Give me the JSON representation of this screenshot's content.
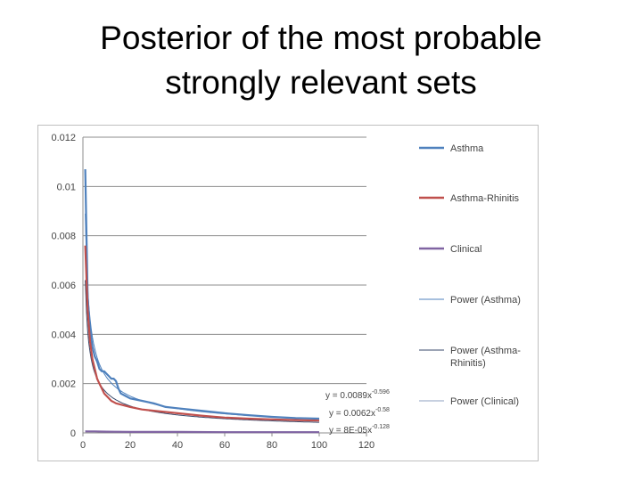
{
  "slide": {
    "title_line1": "Posterior of the most probable",
    "title_line2": "strongly relevant sets"
  },
  "chart_data": {
    "type": "line",
    "xlim": [
      0,
      120
    ],
    "ylim": [
      0,
      0.012
    ],
    "x_ticks": [
      "0",
      "20",
      "40",
      "60",
      "80",
      "100",
      "120"
    ],
    "y_ticks": [
      "0",
      "0.002",
      "0.004",
      "0.006",
      "0.008",
      "0.01",
      "0.012"
    ],
    "grid": "horizontal",
    "legend_position": "right",
    "series": [
      {
        "name": "Asthma",
        "color": "#4f81bd",
        "style": "thick",
        "x": [
          1,
          2,
          3,
          4,
          5,
          6,
          7,
          8,
          9,
          10,
          11,
          12,
          13,
          14,
          15,
          16,
          18,
          20,
          25,
          30,
          35,
          40,
          45,
          50,
          60,
          70,
          80,
          90,
          100
        ],
        "y": [
          0.0107,
          0.0055,
          0.0042,
          0.0035,
          0.0031,
          0.0029,
          0.0026,
          0.0025,
          0.0025,
          0.0024,
          0.0023,
          0.0022,
          0.0022,
          0.0021,
          0.0018,
          0.0016,
          0.0015,
          0.0014,
          0.0013,
          0.0012,
          0.00105,
          0.001,
          0.00095,
          0.0009,
          0.0008,
          0.00072,
          0.00065,
          0.0006,
          0.00058
        ]
      },
      {
        "name": "Asthma-Rhinitis",
        "color": "#c0504d",
        "style": "thick",
        "x": [
          1,
          2,
          3,
          4,
          5,
          6,
          7,
          8,
          9,
          10,
          12,
          14,
          16,
          18,
          20,
          25,
          30,
          35,
          40,
          50,
          60,
          70,
          80,
          90,
          100
        ],
        "y": [
          0.0076,
          0.005,
          0.0037,
          0.003,
          0.0026,
          0.0022,
          0.002,
          0.0018,
          0.0016,
          0.0015,
          0.0013,
          0.0012,
          0.00115,
          0.0011,
          0.00105,
          0.00095,
          0.0009,
          0.00085,
          0.0008,
          0.0007,
          0.00062,
          0.00058,
          0.00055,
          0.00052,
          0.0005
        ]
      },
      {
        "name": "Clinical",
        "color": "#8064a2",
        "style": "thick",
        "x": [
          1,
          5,
          10,
          20,
          40,
          60,
          80,
          100
        ],
        "y": [
          6e-05,
          6e-05,
          5e-05,
          4e-05,
          4e-05,
          3e-05,
          3e-05,
          3e-05
        ]
      },
      {
        "name": "Power (Asthma)",
        "color": "#4f81bd",
        "style": "thin",
        "fit": {
          "a": 0.0089,
          "b": -0.596
        }
      },
      {
        "name": "Power (Asthma-Rhinitis)",
        "color": "#3a4a6b",
        "style": "thin",
        "fit": {
          "a": 0.0062,
          "b": -0.58
        }
      },
      {
        "name": "Power (Clinical)",
        "color": "#8fa0c0",
        "style": "thin",
        "fit": {
          "a": 8e-05,
          "b": -0.128
        }
      }
    ],
    "annotations": [
      {
        "base": "y = 0.0089x",
        "exp": "-0.596"
      },
      {
        "base": "y = 0.0062x",
        "exp": "-0.58"
      },
      {
        "base": "y = 8E-05x",
        "exp": "-0.128"
      }
    ],
    "legend": [
      {
        "lines": [
          "Asthma"
        ]
      },
      {
        "lines": [
          "Asthma-Rhinitis"
        ]
      },
      {
        "lines": [
          "Clinical"
        ]
      },
      {
        "lines": [
          "Power (Asthma)"
        ]
      },
      {
        "lines": [
          "Power (Asthma-",
          "Rhinitis)"
        ]
      },
      {
        "lines": [
          "Power (Clinical)"
        ]
      }
    ]
  }
}
